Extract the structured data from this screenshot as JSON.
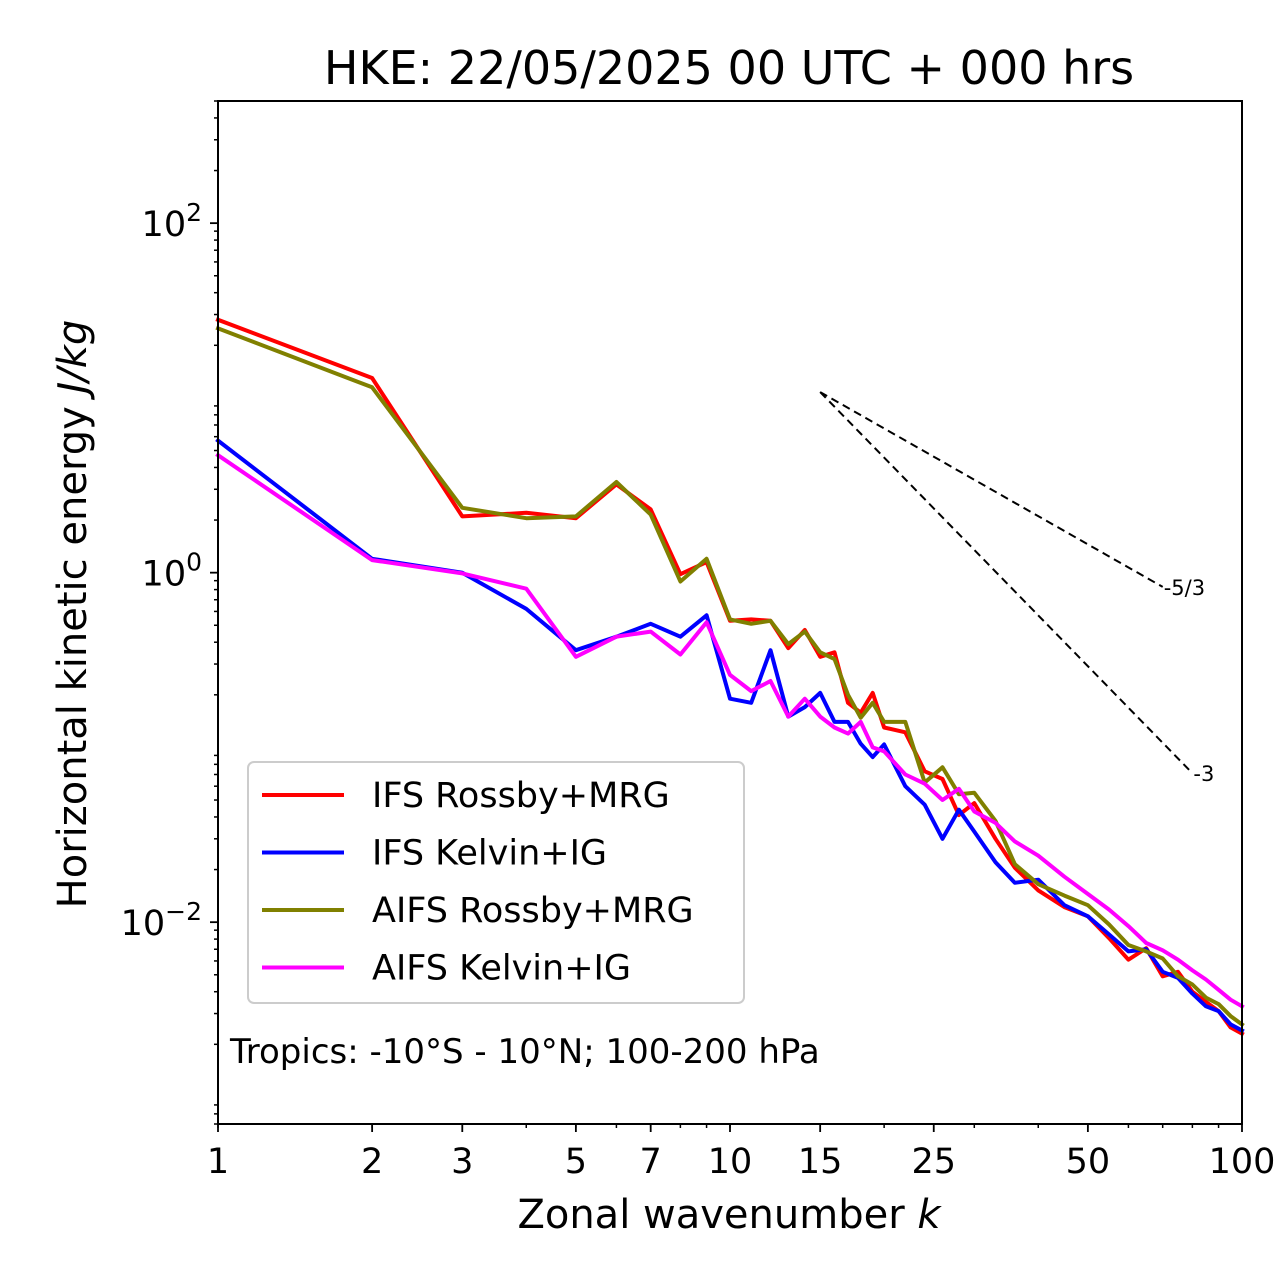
{
  "chart_data": {
    "type": "line",
    "title": "HKE: 22/05/2025 00 UTC + 000 hrs",
    "xlabel": "Zonal wavenumber",
    "xlabel_var": "k",
    "ylabel": "Horizontal kinetic energy",
    "ylabel_unit": "J/kg",
    "xscale": "log",
    "yscale": "log",
    "xlim": [
      1,
      100
    ],
    "ylim": [
      0.0007,
      500
    ],
    "x_ticks": [
      1,
      2,
      3,
      5,
      7,
      10,
      15,
      25,
      50,
      100
    ],
    "x_tick_labels": [
      "1",
      "2",
      "3",
      "5",
      "7",
      "10",
      "15",
      "25",
      "50",
      "100"
    ],
    "y_ticks": [
      {
        "value": 100,
        "base": "10",
        "exp": "2"
      },
      {
        "value": 1,
        "base": "10",
        "exp": "0"
      },
      {
        "value": 0.01,
        "base": "10",
        "exp": "−2"
      }
    ],
    "grid": false,
    "legend_position": "lower-left",
    "annotation": "Tropics: -10°S - 10°N; 100-200 hPa",
    "reference_slopes": [
      {
        "label": "-5/3",
        "exponent": -1.6667,
        "x_start": 15,
        "x_end": 70,
        "y_start": 10.8
      },
      {
        "label": "-3",
        "exponent": -3,
        "x_start": 15,
        "x_end": 80,
        "y_start": 10.8
      }
    ],
    "series": [
      {
        "name": "IFS Rossby+MRG",
        "color": "#ff0000",
        "x": [
          1,
          2,
          3,
          4,
          5,
          6,
          7,
          8,
          9,
          10,
          11,
          12,
          13,
          14,
          15,
          16,
          17,
          18,
          19,
          20,
          22,
          24,
          26,
          28,
          30,
          33,
          36,
          40,
          45,
          50,
          55,
          60,
          65,
          70,
          75,
          80,
          85,
          90,
          95,
          100
        ],
        "y": [
          28,
          13,
          2.1,
          2.2,
          2.05,
          3.2,
          2.3,
          0.98,
          1.15,
          0.53,
          0.54,
          0.53,
          0.37,
          0.47,
          0.33,
          0.35,
          0.18,
          0.158,
          0.205,
          0.13,
          0.122,
          0.073,
          0.066,
          0.041,
          0.048,
          0.03,
          0.0205,
          0.0152,
          0.0122,
          0.0108,
          0.0081,
          0.0061,
          0.0071,
          0.0049,
          0.0052,
          0.004,
          0.0035,
          0.0031,
          0.0025,
          0.0023
        ]
      },
      {
        "name": "IFS Kelvin+IG",
        "color": "#0000ff",
        "x": [
          1,
          2,
          3,
          4,
          5,
          6,
          7,
          8,
          9,
          10,
          11,
          12,
          13,
          14,
          15,
          16,
          17,
          18,
          19,
          20,
          22,
          24,
          26,
          28,
          30,
          33,
          36,
          40,
          45,
          50,
          55,
          60,
          65,
          70,
          75,
          80,
          85,
          90,
          95,
          100
        ],
        "y": [
          5.7,
          1.2,
          1.0,
          0.62,
          0.36,
          0.43,
          0.51,
          0.43,
          0.57,
          0.19,
          0.18,
          0.36,
          0.15,
          0.17,
          0.205,
          0.14,
          0.14,
          0.105,
          0.088,
          0.104,
          0.06,
          0.047,
          0.03,
          0.044,
          0.033,
          0.022,
          0.0168,
          0.0175,
          0.0125,
          0.0108,
          0.0085,
          0.0068,
          0.007,
          0.0052,
          0.0048,
          0.0039,
          0.0033,
          0.0031,
          0.0026,
          0.0024
        ]
      },
      {
        "name": "AIFS Rossby+MRG",
        "color": "#808000",
        "x": [
          1,
          2,
          3,
          4,
          5,
          6,
          7,
          8,
          9,
          10,
          11,
          12,
          13,
          14,
          15,
          16,
          17,
          18,
          19,
          20,
          22,
          24,
          26,
          28,
          30,
          33,
          36,
          40,
          45,
          50,
          55,
          60,
          65,
          70,
          75,
          80,
          85,
          90,
          95,
          100
        ],
        "y": [
          25,
          11.5,
          2.35,
          2.05,
          2.1,
          3.3,
          2.15,
          0.89,
          1.2,
          0.54,
          0.51,
          0.53,
          0.39,
          0.46,
          0.35,
          0.32,
          0.2,
          0.148,
          0.18,
          0.14,
          0.14,
          0.063,
          0.077,
          0.054,
          0.055,
          0.038,
          0.0215,
          0.0165,
          0.0142,
          0.0125,
          0.0097,
          0.0074,
          0.0068,
          0.0062,
          0.0049,
          0.0044,
          0.0037,
          0.0034,
          0.0029,
          0.0026
        ]
      },
      {
        "name": "AIFS Kelvin+IG",
        "color": "#ff00ff",
        "x": [
          1,
          2,
          3,
          4,
          5,
          6,
          7,
          8,
          9,
          10,
          11,
          12,
          13,
          14,
          15,
          16,
          17,
          18,
          19,
          20,
          22,
          24,
          26,
          28,
          30,
          33,
          36,
          40,
          45,
          50,
          55,
          60,
          65,
          70,
          75,
          80,
          85,
          90,
          95,
          100
        ],
        "y": [
          4.7,
          1.18,
          0.99,
          0.81,
          0.33,
          0.43,
          0.46,
          0.34,
          0.52,
          0.26,
          0.21,
          0.24,
          0.15,
          0.19,
          0.15,
          0.13,
          0.12,
          0.14,
          0.1,
          0.095,
          0.07,
          0.062,
          0.05,
          0.058,
          0.043,
          0.037,
          0.029,
          0.024,
          0.0182,
          0.0145,
          0.0118,
          0.0095,
          0.0076,
          0.0069,
          0.0061,
          0.0053,
          0.0047,
          0.0041,
          0.0036,
          0.0033
        ]
      }
    ]
  }
}
